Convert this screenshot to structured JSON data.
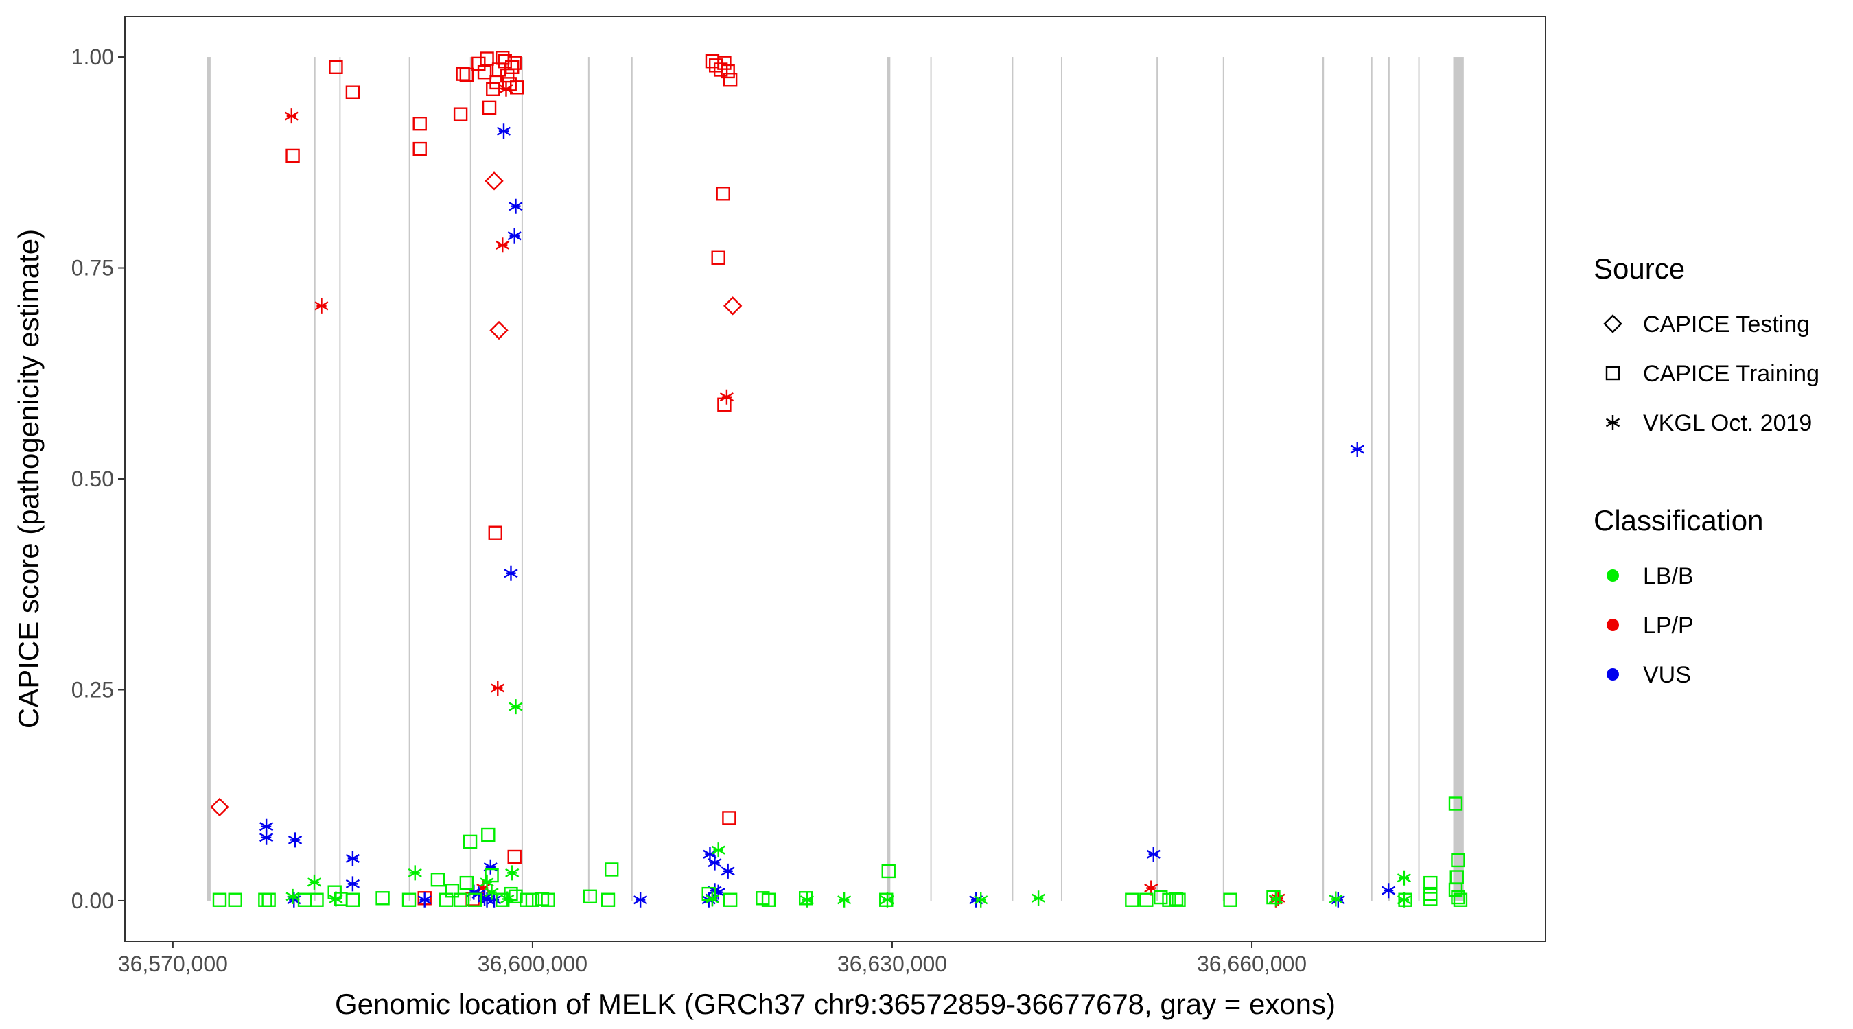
{
  "chart_data": {
    "type": "scatter",
    "xlabel": "Genomic location of MELK (GRCh37 chr9:36572859-36677678, gray = exons)",
    "ylabel": "CAPICE score (pathogenicity estimate)",
    "xlim": [
      36566000,
      36684500
    ],
    "ylim": [
      -0.048,
      1.048
    ],
    "x_ticks": [
      36570000,
      36600000,
      36630000,
      36660000
    ],
    "x_tick_labels": [
      "36,570,000",
      "36,600,000",
      "36,630,000",
      "36,660,000"
    ],
    "y_ticks": [
      0,
      0.25,
      0.5,
      0.75,
      1.0
    ],
    "y_tick_labels": [
      "0.00",
      "0.25",
      "0.50",
      "0.75",
      "1.00"
    ],
    "grid": false,
    "legend_placement": "right",
    "exons": [
      {
        "start": 36572859,
        "end": 36573150
      },
      {
        "start": 36581800,
        "end": 36581880
      },
      {
        "start": 36583900,
        "end": 36583980
      },
      {
        "start": 36589700,
        "end": 36589780
      },
      {
        "start": 36594800,
        "end": 36594880
      },
      {
        "start": 36599100,
        "end": 36599180
      },
      {
        "start": 36604650,
        "end": 36604730
      },
      {
        "start": 36608250,
        "end": 36608330
      },
      {
        "start": 36629550,
        "end": 36629850
      },
      {
        "start": 36633200,
        "end": 36633280
      },
      {
        "start": 36640000,
        "end": 36640080
      },
      {
        "start": 36644100,
        "end": 36644180
      },
      {
        "start": 36652050,
        "end": 36652200
      },
      {
        "start": 36657600,
        "end": 36657680
      },
      {
        "start": 36665850,
        "end": 36666020
      },
      {
        "start": 36669950,
        "end": 36670050
      },
      {
        "start": 36671400,
        "end": 36671480
      },
      {
        "start": 36673900,
        "end": 36673980
      },
      {
        "start": 36676800,
        "end": 36677678
      }
    ],
    "legends": [
      {
        "title": "Source",
        "kind": "shape",
        "entries": [
          {
            "label": "CAPICE Testing",
            "shape": "diamond"
          },
          {
            "label": "CAPICE Training",
            "shape": "square"
          },
          {
            "label": "VKGL Oct. 2019",
            "shape": "asterisk"
          }
        ]
      },
      {
        "title": "Classification",
        "kind": "color",
        "entries": [
          {
            "label": "LB/B",
            "color": "#00ee00"
          },
          {
            "label": "LP/P",
            "color": "#ee0000"
          },
          {
            "label": "VUS",
            "color": "#0000ee"
          }
        ]
      }
    ],
    "series": [
      {
        "class": "LP/P",
        "source": "CAPICE Training",
        "color": "#ee0000",
        "shape": "square",
        "points": [
          [
            36580000,
            0.883
          ],
          [
            36583600,
            0.988
          ],
          [
            36585000,
            0.958
          ],
          [
            36590600,
            0.921
          ],
          [
            36590600,
            0.891
          ],
          [
            36594000,
            0.932
          ],
          [
            36594200,
            0.98
          ],
          [
            36594500,
            0.979
          ],
          [
            36595500,
            0.992
          ],
          [
            36596000,
            0.982
          ],
          [
            36596200,
            0.998
          ],
          [
            36596400,
            0.94
          ],
          [
            36596700,
            0.962
          ],
          [
            36597000,
            0.97
          ],
          [
            36597200,
            0.985
          ],
          [
            36597500,
            0.999
          ],
          [
            36597700,
            0.995
          ],
          [
            36597900,
            0.978
          ],
          [
            36598100,
            0.968
          ],
          [
            36598300,
            0.988
          ],
          [
            36598500,
            0.993
          ],
          [
            36598700,
            0.964
          ],
          [
            36596900,
            0.436
          ],
          [
            36598500,
            0.052
          ],
          [
            36615000,
            0.995
          ],
          [
            36615300,
            0.99
          ],
          [
            36615700,
            0.985
          ],
          [
            36616000,
            0.993
          ],
          [
            36616300,
            0.983
          ],
          [
            36616500,
            0.973
          ],
          [
            36615900,
            0.838
          ],
          [
            36615500,
            0.762
          ],
          [
            36616000,
            0.588
          ],
          [
            36616400,
            0.098
          ],
          [
            36591000,
            0.003
          ],
          [
            36595000,
            0.002
          ]
        ]
      },
      {
        "class": "LP/P",
        "source": "CAPICE Testing",
        "color": "#ee0000",
        "shape": "diamond",
        "points": [
          [
            36573900,
            0.111
          ],
          [
            36596800,
            0.853
          ],
          [
            36597200,
            0.676
          ],
          [
            36616700,
            0.705
          ]
        ]
      },
      {
        "class": "LP/P",
        "source": "VKGL Oct. 2019",
        "color": "#ee0000",
        "shape": "asterisk",
        "points": [
          [
            36579900,
            0.93
          ],
          [
            36582400,
            0.705
          ],
          [
            36597500,
            0.777
          ],
          [
            36597100,
            0.252
          ],
          [
            36597800,
            0.962
          ],
          [
            36616200,
            0.597
          ],
          [
            36595900,
            0.015
          ],
          [
            36651600,
            0.015
          ],
          [
            36662200,
            0.003
          ],
          [
            36662000,
            0.001
          ]
        ]
      },
      {
        "class": "VUS",
        "source": "VKGL Oct. 2019",
        "color": "#0000ee",
        "shape": "asterisk",
        "points": [
          [
            36597600,
            0.912
          ],
          [
            36598600,
            0.823
          ],
          [
            36598500,
            0.788
          ],
          [
            36598200,
            0.388
          ],
          [
            36577800,
            0.088
          ],
          [
            36577800,
            0.075
          ],
          [
            36580200,
            0.072
          ],
          [
            36585000,
            0.05
          ],
          [
            36585000,
            0.02
          ],
          [
            36580100,
            0.001
          ],
          [
            36591000,
            0.001
          ],
          [
            36595100,
            0.01
          ],
          [
            36595500,
            0.008
          ],
          [
            36596000,
            0.003
          ],
          [
            36596500,
            0.04
          ],
          [
            36596200,
            0.001
          ],
          [
            36596800,
            0.001
          ],
          [
            36609000,
            0.001
          ],
          [
            36614800,
            0.055
          ],
          [
            36615200,
            0.045
          ],
          [
            36616300,
            0.035
          ],
          [
            36615200,
            0.012
          ],
          [
            36615500,
            0.01
          ],
          [
            36615000,
            0.003
          ],
          [
            36614700,
            0.001
          ],
          [
            36637000,
            0.001
          ],
          [
            36651800,
            0.055
          ],
          [
            36667200,
            0.001
          ],
          [
            36668800,
            0.535
          ],
          [
            36671400,
            0.012
          ]
        ]
      },
      {
        "class": "LB/B",
        "source": "VKGL Oct. 2019",
        "color": "#00ee00",
        "shape": "asterisk",
        "points": [
          [
            36598600,
            0.23
          ],
          [
            36598300,
            0.033
          ],
          [
            36590200,
            0.033
          ],
          [
            36581800,
            0.022
          ],
          [
            36580000,
            0.005
          ],
          [
            36583600,
            0.002
          ],
          [
            36596200,
            0.022
          ],
          [
            36596600,
            0.01
          ],
          [
            36597900,
            0.002
          ],
          [
            36615500,
            0.06
          ],
          [
            36615000,
            0.002
          ],
          [
            36622900,
            0.001
          ],
          [
            36626000,
            0.001
          ],
          [
            36629600,
            0.001
          ],
          [
            36637400,
            0.001
          ],
          [
            36642200,
            0.003
          ],
          [
            36662000,
            0.002
          ],
          [
            36667000,
            0.002
          ],
          [
            36672700,
            0.027
          ],
          [
            36672700,
            0.001
          ]
        ]
      },
      {
        "class": "LB/B",
        "source": "CAPICE Training",
        "color": "#00ee00",
        "shape": "square",
        "points": [
          [
            36573900,
            0.001
          ],
          [
            36575200,
            0.001
          ],
          [
            36577700,
            0.001
          ],
          [
            36578000,
            0.001
          ],
          [
            36581000,
            0.001
          ],
          [
            36582000,
            0.001
          ],
          [
            36583500,
            0.01
          ],
          [
            36584000,
            0.002
          ],
          [
            36585000,
            0.001
          ],
          [
            36587500,
            0.003
          ],
          [
            36589700,
            0.001
          ],
          [
            36592100,
            0.025
          ],
          [
            36592800,
            0.001
          ],
          [
            36593300,
            0.012
          ],
          [
            36594000,
            0.001
          ],
          [
            36594500,
            0.021
          ],
          [
            36594800,
            0.07
          ],
          [
            36595200,
            0.001
          ],
          [
            36596300,
            0.078
          ],
          [
            36596600,
            0.03
          ],
          [
            36597500,
            0.001
          ],
          [
            36598200,
            0.008
          ],
          [
            36598600,
            0.005
          ],
          [
            36599500,
            0.001
          ],
          [
            36600000,
            0.001
          ],
          [
            36600800,
            0.002
          ],
          [
            36601300,
            0.001
          ],
          [
            36604800,
            0.005
          ],
          [
            36606600,
            0.037
          ],
          [
            36606300,
            0.001
          ],
          [
            36614700,
            0.008
          ],
          [
            36616500,
            0.001
          ],
          [
            36619200,
            0.003
          ],
          [
            36619700,
            0.001
          ],
          [
            36622800,
            0.003
          ],
          [
            36629700,
            0.035
          ],
          [
            36629500,
            0.001
          ],
          [
            36650000,
            0.001
          ],
          [
            36651200,
            0.001
          ],
          [
            36652400,
            0.004
          ],
          [
            36653100,
            0.001
          ],
          [
            36653700,
            0.002
          ],
          [
            36653900,
            0.001
          ],
          [
            36658200,
            0.001
          ],
          [
            36661800,
            0.004
          ],
          [
            36672800,
            0.001
          ],
          [
            36674900,
            0.021
          ],
          [
            36674900,
            0.008
          ],
          [
            36674900,
            0.002
          ],
          [
            36677000,
            0.115
          ],
          [
            36677200,
            0.048
          ],
          [
            36677100,
            0.028
          ],
          [
            36677000,
            0.013
          ],
          [
            36677200,
            0.004
          ],
          [
            36677400,
            0.001
          ]
        ]
      }
    ]
  }
}
